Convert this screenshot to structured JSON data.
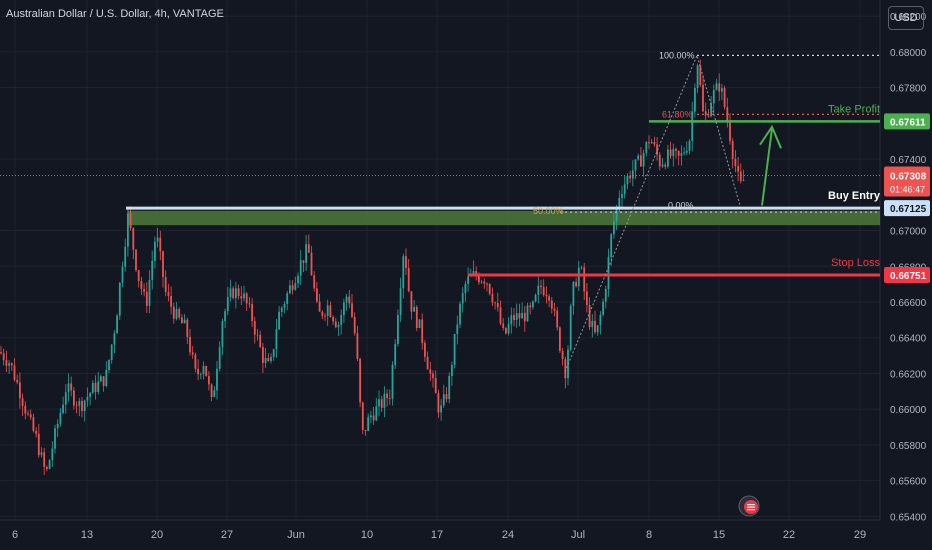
{
  "header": {
    "title": "Australian Dollar / U.S. Dollar, 4h, VANTAGE",
    "currency": "USD"
  },
  "colors": {
    "background": "#131722",
    "grid": "#1e222d",
    "axis_text": "#b2b5be",
    "candle_up": "#26a69a",
    "candle_down": "#ef5350",
    "take_profit": "#4caf50",
    "stop_loss": "#f23645",
    "buy_entry": "#c9e0f5",
    "support_zone": "#4e7a3a",
    "fib_line": "#cfd3dc"
  },
  "chart_data": {
    "type": "candlestick",
    "symbol": "AUDUSD",
    "timeframe": "4h",
    "y_axis": {
      "range": [
        0.6538,
        0.6829
      ],
      "ticks": [
        "0.68200",
        "0.68000",
        "0.67800",
        "0.67400",
        "0.67000",
        "0.66800",
        "0.66600",
        "0.66400",
        "0.66200",
        "0.66000",
        "0.65800",
        "0.65600",
        "0.65400"
      ]
    },
    "x_axis": {
      "ticks": [
        "6",
        "13",
        "20",
        "27",
        "Jun",
        "10",
        "17",
        "24",
        "Jul",
        "8",
        "15",
        "22",
        "29"
      ]
    },
    "price_path": [
      [
        0,
        0.6632
      ],
      [
        10,
        0.6626
      ],
      [
        20,
        0.661
      ],
      [
        30,
        0.6592
      ],
      [
        36,
        0.6584
      ],
      [
        46,
        0.6563
      ],
      [
        52,
        0.6578
      ],
      [
        66,
        0.6612
      ],
      [
        80,
        0.6602
      ],
      [
        94,
        0.6612
      ],
      [
        106,
        0.6618
      ],
      [
        116,
        0.665
      ],
      [
        122,
        0.6681
      ],
      [
        128,
        0.6708
      ],
      [
        138,
        0.6675
      ],
      [
        146,
        0.6658
      ],
      [
        156,
        0.6699
      ],
      [
        166,
        0.6664
      ],
      [
        176,
        0.6652
      ],
      [
        186,
        0.6645
      ],
      [
        196,
        0.6618
      ],
      [
        204,
        0.6627
      ],
      [
        212,
        0.6602
      ],
      [
        222,
        0.665
      ],
      [
        232,
        0.6666
      ],
      [
        242,
        0.6665
      ],
      [
        252,
        0.6651
      ],
      [
        262,
        0.663
      ],
      [
        270,
        0.6622
      ],
      [
        278,
        0.6652
      ],
      [
        290,
        0.6668
      ],
      [
        300,
        0.6681
      ],
      [
        308,
        0.669
      ],
      [
        318,
        0.6652
      ],
      [
        328,
        0.6658
      ],
      [
        338,
        0.6647
      ],
      [
        348,
        0.6666
      ],
      [
        356,
        0.6638
      ],
      [
        362,
        0.6585
      ],
      [
        370,
        0.6596
      ],
      [
        380,
        0.6602
      ],
      [
        390,
        0.6609
      ],
      [
        398,
        0.6657
      ],
      [
        404,
        0.6692
      ],
      [
        410,
        0.666
      ],
      [
        420,
        0.6645
      ],
      [
        430,
        0.662
      ],
      [
        440,
        0.6598
      ],
      [
        448,
        0.6611
      ],
      [
        458,
        0.6652
      ],
      [
        466,
        0.6671
      ],
      [
        474,
        0.6675
      ],
      [
        486,
        0.6673
      ],
      [
        496,
        0.6658
      ],
      [
        504,
        0.664
      ],
      [
        512,
        0.6651
      ],
      [
        522,
        0.6652
      ],
      [
        532,
        0.6655
      ],
      [
        540,
        0.6669
      ],
      [
        550,
        0.6665
      ],
      [
        558,
        0.6641
      ],
      [
        566,
        0.662
      ],
      [
        572,
        0.6664
      ],
      [
        580,
        0.6681
      ],
      [
        588,
        0.6652
      ],
      [
        596,
        0.664
      ],
      [
        604,
        0.6662
      ],
      [
        612,
        0.67
      ],
      [
        620,
        0.6722
      ],
      [
        630,
        0.6732
      ],
      [
        640,
        0.6739
      ],
      [
        650,
        0.6752
      ],
      [
        660,
        0.6738
      ],
      [
        670,
        0.6742
      ],
      [
        680,
        0.674
      ],
      [
        690,
        0.6752
      ],
      [
        697,
        0.6798
      ],
      [
        704,
        0.676
      ],
      [
        712,
        0.6775
      ],
      [
        720,
        0.6782
      ],
      [
        728,
        0.676
      ],
      [
        734,
        0.674
      ],
      [
        740,
        0.6724
      ],
      [
        746,
        0.6731
      ]
    ],
    "current_price": "0.67308",
    "countdown": "01:46:47",
    "levels": [
      {
        "name": "Take Profit",
        "value": 0.67611,
        "label": "0.67611"
      },
      {
        "name": "Buy Entry",
        "value": 0.67125,
        "label": "0.67125"
      },
      {
        "name": "Stop Loss",
        "value": 0.66751,
        "label": "0.66751"
      }
    ],
    "support_zone": {
      "top": 0.6711,
      "bottom": 0.6703
    },
    "fibonacci": [
      {
        "label": "100.00%",
        "value": 0.6798
      },
      {
        "label": "61.80%",
        "value": 0.6765
      },
      {
        "label": "50.00%",
        "value": 0.6712
      },
      {
        "label": "0.00%",
        "value": 0.6713
      }
    ],
    "annotations": {
      "take_profit": "Take Profit",
      "buy_entry": "Buy Entry",
      "stop_loss": "Stop Loss"
    }
  }
}
